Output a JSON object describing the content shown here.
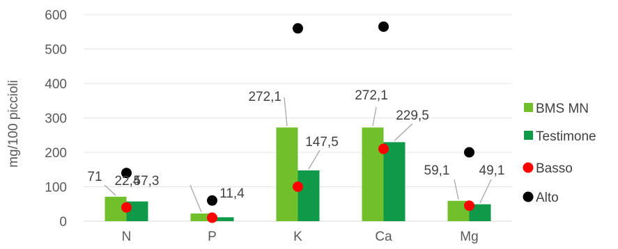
{
  "chart_data": {
    "type": "bar",
    "title": "",
    "xlabel": "",
    "ylabel": "mg/100 piccioli",
    "ylim": [
      0,
      600
    ],
    "yticks": [
      0,
      100,
      200,
      300,
      400,
      500,
      600
    ],
    "grid": true,
    "legend_position": "right",
    "categories": [
      "N",
      "P",
      "K",
      "Ca",
      "Mg"
    ],
    "series": [
      {
        "name": "BMS MN",
        "kind": "bar",
        "color": "#70BF2B",
        "values": [
          71,
          22.4,
          272.1,
          272.1,
          59.1
        ],
        "labels": [
          "71",
          "22,4",
          "272,1",
          "272,1",
          "59,1"
        ]
      },
      {
        "name": "Testimone",
        "kind": "bar",
        "color": "#0E9A48",
        "values": [
          57.3,
          11.4,
          147.5,
          229.5,
          49.1
        ],
        "labels": [
          "57,3",
          "11,4",
          "147,5",
          "229,5",
          "49,1"
        ]
      },
      {
        "name": "Basso",
        "kind": "marker",
        "color": "#FF0000",
        "values": [
          40,
          10,
          100,
          210,
          45
        ]
      },
      {
        "name": "Alto",
        "kind": "marker",
        "color": "#000000",
        "values": [
          140,
          60,
          560,
          565,
          200
        ]
      }
    ]
  }
}
